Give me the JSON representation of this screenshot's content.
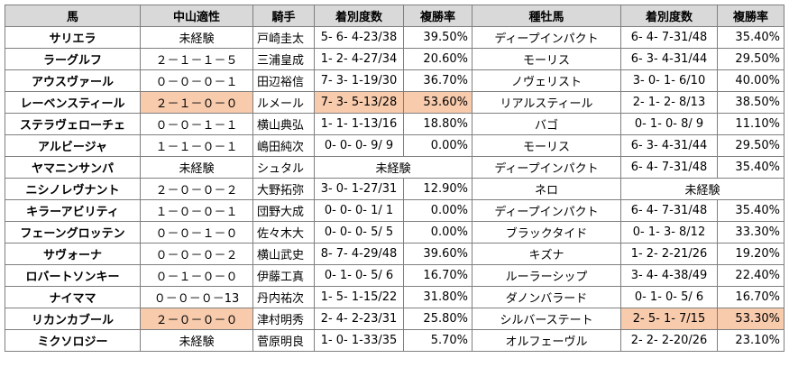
{
  "headers": [
    "馬",
    "中山適性",
    "騎手",
    "着別度数",
    "複勝率",
    "種牡馬",
    "着別度数",
    "複勝率"
  ],
  "highlight_color": "#f8cbad",
  "rows": [
    {
      "horse": "サリエラ",
      "nakayama": "未経験",
      "jockey": "戸崎圭太",
      "jockey_record": "5- 6- 4-23/38",
      "jockey_rate": "39.50%",
      "sire": "ディープインパクト",
      "sire_record": "6- 4- 7-31/48",
      "sire_rate": "35.40%"
    },
    {
      "horse": "ラーグルフ",
      "nakayama": "２－１－１－５",
      "jockey": "三浦皇成",
      "jockey_record": "1- 2- 4-27/34",
      "jockey_rate": "20.60%",
      "sire": "モーリス",
      "sire_record": "6- 3- 4-31/44",
      "sire_rate": "29.50%"
    },
    {
      "horse": "アウスヴァール",
      "nakayama": "０－０－０－１",
      "jockey": "田辺裕信",
      "jockey_record": "7- 3- 1-19/30",
      "jockey_rate": "36.70%",
      "sire": "ノヴェリスト",
      "sire_record": "3- 0- 1- 6/10",
      "sire_rate": "40.00%"
    },
    {
      "horse": "レーベンスティール",
      "nakayama": "２－１－０－０",
      "jockey": "ルメール",
      "jockey_record": "7- 3- 5-13/28",
      "jockey_rate": "53.60%",
      "sire": "リアルスティール",
      "sire_record": "2- 1- 2- 8/13",
      "sire_rate": "38.50%"
    },
    {
      "horse": "ステラヴェローチェ",
      "nakayama": "０－０－１－１",
      "jockey": "横山典弘",
      "jockey_record": "1- 1- 1-13/16",
      "jockey_rate": "18.80%",
      "sire": "バゴ",
      "sire_record": "0- 1- 0- 8/ 9",
      "sire_rate": "11.10%"
    },
    {
      "horse": "アルビージャ",
      "nakayama": "１－１－０－１",
      "jockey": "嶋田純次",
      "jockey_record": "0- 0- 0- 9/ 9",
      "jockey_rate": "0.00%",
      "sire": "モーリス",
      "sire_record": "6- 3- 4-31/44",
      "sire_rate": "29.50%"
    },
    {
      "horse": "ヤマニンサンパ",
      "nakayama": "未経験",
      "jockey": "シュタル",
      "jockey_merged": "未経験",
      "sire": "ディープインパクト",
      "sire_record": "6- 4- 7-31/48",
      "sire_rate": "35.40%"
    },
    {
      "horse": "ニシノレヴナント",
      "nakayama": "２－０－０－２",
      "jockey": "大野拓弥",
      "jockey_record": "3- 0- 1-27/31",
      "jockey_rate": "12.90%",
      "sire": "ネロ",
      "sire_merged": "未経験"
    },
    {
      "horse": "キラーアビリティ",
      "nakayama": "１－０－０－１",
      "jockey": "団野大成",
      "jockey_record": "0- 0- 0- 1/ 1",
      "jockey_rate": "0.00%",
      "sire": "ディープインパクト",
      "sire_record": "6- 4- 7-31/48",
      "sire_rate": "35.40%"
    },
    {
      "horse": "フェーングロッテン",
      "nakayama": "０－０－１－０",
      "jockey": "佐々木大",
      "jockey_record": "0- 0- 0- 5/ 5",
      "jockey_rate": "0.00%",
      "sire": "ブラックタイド",
      "sire_record": "0- 1- 3- 8/12",
      "sire_rate": "33.30%"
    },
    {
      "horse": "サヴォーナ",
      "nakayama": "０－０－０－２",
      "jockey": "横山武史",
      "jockey_record": "8- 7- 4-29/48",
      "jockey_rate": "39.60%",
      "sire": "キズナ",
      "sire_record": "1- 2- 2-21/26",
      "sire_rate": "19.20%"
    },
    {
      "horse": "ロバートソンキー",
      "nakayama": "０－１－０－０",
      "jockey": "伊藤工真",
      "jockey_record": "0- 1- 0- 5/ 6",
      "jockey_rate": "16.70%",
      "sire": "ルーラーシップ",
      "sire_record": "3- 4- 4-38/49",
      "sire_rate": "22.40%"
    },
    {
      "horse": "ナイママ",
      "nakayama": "０－０－０－13",
      "jockey": "丹内祐次",
      "jockey_record": "1- 5- 1-15/22",
      "jockey_rate": "31.80%",
      "sire": "ダノンバラード",
      "sire_record": "0- 1- 0- 5/ 6",
      "sire_rate": "16.70%"
    },
    {
      "horse": "リカンカブール",
      "nakayama": "２－０－０－０",
      "jockey": "津村明秀",
      "jockey_record": "2- 4- 2-23/31",
      "jockey_rate": "25.80%",
      "sire": "シルバーステート",
      "sire_record": "2- 5- 1- 7/15",
      "sire_rate": "53.30%"
    },
    {
      "horse": "ミクソロジー",
      "nakayama": "未経験",
      "jockey": "菅原明良",
      "jockey_record": "1- 0- 1-33/35",
      "jockey_rate": "5.70%",
      "sire": "オルフェーヴル",
      "sire_record": "2- 2- 2-20/26",
      "sire_rate": "23.10%"
    }
  ]
}
